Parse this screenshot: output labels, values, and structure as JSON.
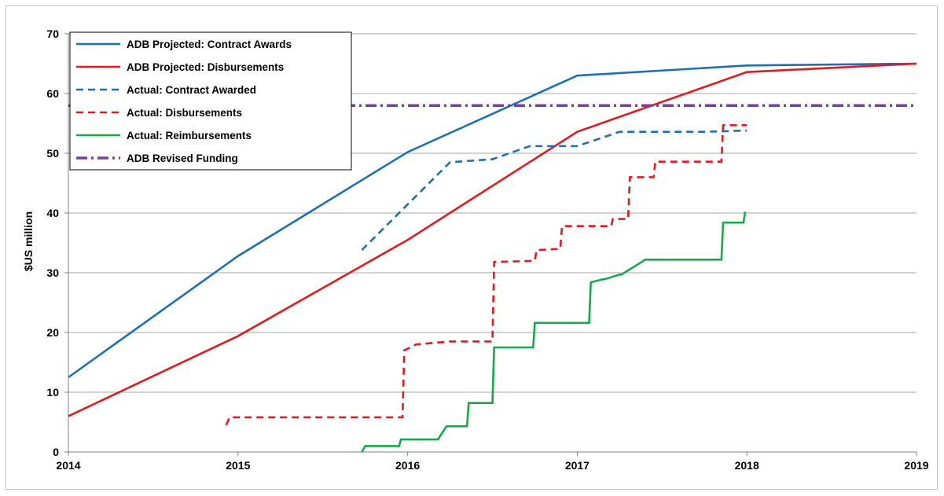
{
  "chart_data": {
    "type": "line",
    "title": "",
    "xlabel": "",
    "ylabel": "$US million",
    "xlim": [
      2014,
      2019
    ],
    "ylim": [
      0,
      70
    ],
    "x_ticks": [
      "2014",
      "2015",
      "2016",
      "2017",
      "2018",
      "2019"
    ],
    "y_ticks": [
      "0",
      "10",
      "20",
      "30",
      "40",
      "50",
      "60",
      "70"
    ],
    "grid": "horizontal",
    "legend_position": "top-left",
    "series": [
      {
        "name": "ADB Projected: Contract Awards",
        "color": "#1f6fb4",
        "style": "solid",
        "x": [
          2014,
          2015,
          2016,
          2017,
          2018,
          2019
        ],
        "y": [
          12.5,
          32.8,
          50.2,
          63.0,
          64.7,
          65.0
        ]
      },
      {
        "name": "ADB Projected: Disbursements",
        "color": "#e31a1c",
        "style": "solid",
        "x": [
          2014,
          2015,
          2016,
          2017,
          2018,
          2019
        ],
        "y": [
          6.0,
          19.4,
          35.5,
          53.6,
          63.6,
          65.0
        ]
      },
      {
        "name": "Actual: Contract Awarded",
        "color": "#1f6fb4",
        "style": "dashed",
        "x": [
          2015.73,
          2016.25,
          2016.5,
          2016.72,
          2017.0,
          2017.25,
          2017.5,
          2017.75,
          2018.0
        ],
        "y": [
          33.8,
          48.5,
          49.0,
          51.2,
          51.2,
          53.6,
          53.6,
          53.6,
          53.8
        ]
      },
      {
        "name": "Actual: Disbursements",
        "color": "#e31a1c",
        "style": "dashed",
        "x": [
          2014.93,
          2014.95,
          2015.97,
          2015.98,
          2016.05,
          2016.25,
          2016.5,
          2016.51,
          2016.75,
          2016.76,
          2016.9,
          2016.91,
          2017.2,
          2017.21,
          2017.3,
          2017.31,
          2017.45,
          2017.46,
          2017.5,
          2017.85,
          2017.86,
          2018.0
        ],
        "y": [
          4.5,
          5.8,
          5.8,
          17.0,
          18.0,
          18.5,
          18.5,
          31.8,
          32.0,
          33.8,
          34.0,
          37.8,
          37.8,
          39.0,
          39.0,
          46.0,
          46.0,
          48.6,
          48.6,
          48.6,
          54.7,
          54.7
        ]
      },
      {
        "name": "Actual: Reimbursements",
        "color": "#18a84a",
        "style": "solid",
        "x": [
          2015.73,
          2015.75,
          2015.95,
          2015.96,
          2016.18,
          2016.19,
          2016.22,
          2016.23,
          2016.35,
          2016.36,
          2016.5,
          2016.51,
          2016.74,
          2016.75,
          2017.07,
          2017.08,
          2017.15,
          2017.16,
          2017.25,
          2017.26,
          2017.38,
          2017.4,
          2017.85,
          2017.86,
          2017.98,
          2017.99
        ],
        "y": [
          0,
          1.0,
          1.0,
          2.1,
          2.1,
          2.6,
          3.9,
          4.3,
          4.3,
          8.2,
          8.2,
          17.5,
          17.5,
          21.6,
          21.6,
          28.4,
          28.9,
          28.9,
          29.7,
          29.7,
          31.8,
          32.2,
          32.2,
          38.4,
          38.4,
          40.2
        ]
      },
      {
        "name": "ADB Revised Funding",
        "color": "#7a3fa0",
        "style": "dashdot",
        "x": [
          2014,
          2019
        ],
        "y": [
          58.0,
          58.0
        ]
      }
    ]
  }
}
